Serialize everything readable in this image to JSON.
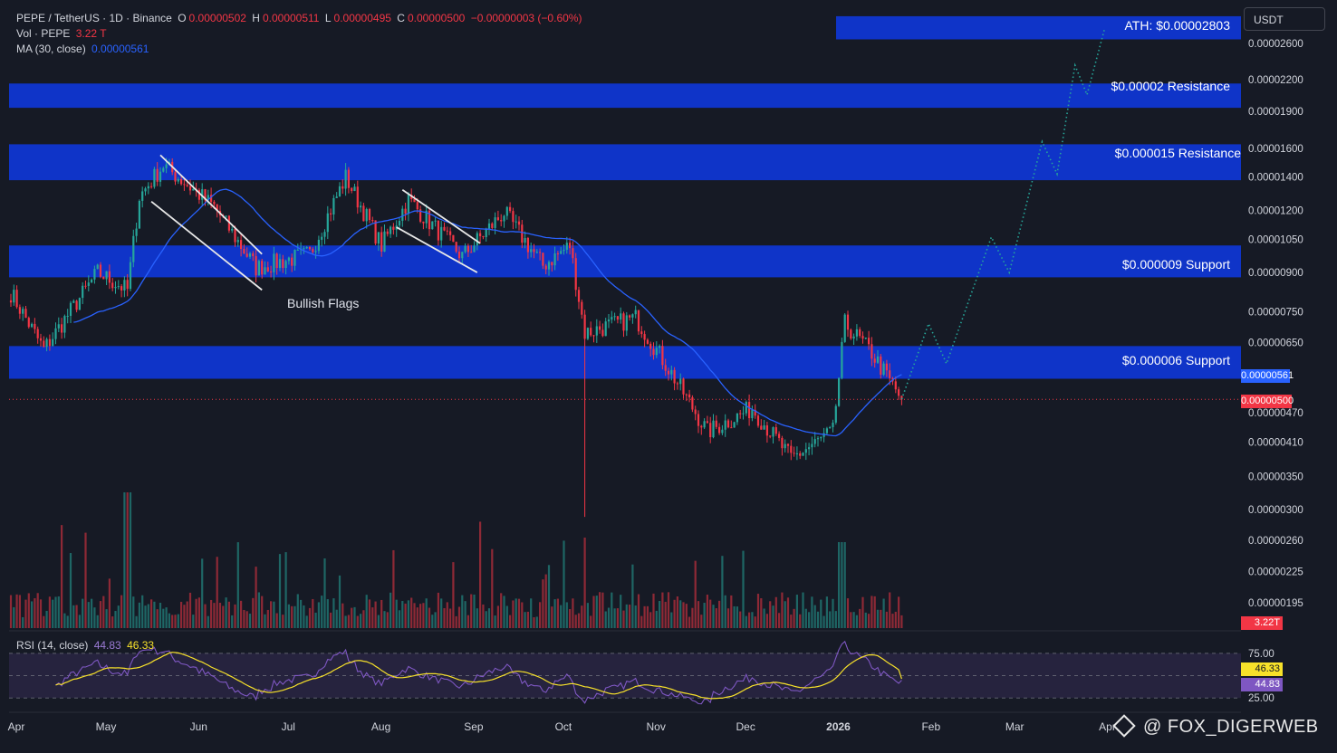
{
  "header": {
    "symbol": "PEPE / TetherUS · 1D · Binance",
    "o_label": "O",
    "o_value": "0.00000502",
    "h_label": "H",
    "h_value": "0.00000511",
    "l_label": "L",
    "l_value": "0.00000495",
    "c_label": "C",
    "c_value": "0.00000500",
    "change": "−0.00000003 (−0.60%)",
    "vol_label": "Vol · PEPE",
    "vol_value": "3.22 T",
    "ma_label": "MA (30, close)",
    "ma_value": "0.00000561",
    "currency_button": "USDT"
  },
  "zones": [
    {
      "label": "ATH: $0.00002803",
      "low": 2.65e-05,
      "high": 2.95e-05
    },
    {
      "label": "$0.00002 Resistance",
      "low": 1.93e-05,
      "high": 2.16e-05
    },
    {
      "label": "$0.000015 Resistance",
      "low": 1.38e-05,
      "high": 1.63e-05
    },
    {
      "label": "$0.000009 Support",
      "low": 8.8e-06,
      "high": 1.02e-05
    },
    {
      "label": "$0.000006 Support",
      "low": 5.5e-06,
      "high": 6.4e-06
    }
  ],
  "annotations": {
    "bullish_flags": "Bullish Flags"
  },
  "price_axis": {
    "ticks": [
      "0.00002600",
      "0.00002200",
      "0.00001900",
      "0.00001600",
      "0.00001400",
      "0.00001200",
      "0.00001050",
      "0.00000900",
      "0.00000750",
      "0.00000650",
      "0.00000470",
      "0.00000410",
      "0.00000350",
      "0.00000300",
      "0.00000260",
      "0.00000225",
      "0.00000195"
    ],
    "ma_badge": "0.00000561",
    "price_badge": "0.00000500",
    "vol_badge": "3.22T"
  },
  "time_axis": [
    "Apr",
    "May",
    "Jun",
    "Jul",
    "Aug",
    "Sep",
    "Oct",
    "Nov",
    "Dec",
    "2026",
    "Feb",
    "Mar",
    "Apr"
  ],
  "rsi": {
    "label": "RSI (14, close)",
    "value": "44.83",
    "ma_value": "46.33",
    "ticks": [
      "75.00",
      "25.00"
    ],
    "badge_ma": "46.33",
    "badge_rsi": "44.83"
  },
  "chart_data": {
    "type": "candlestick",
    "scale": "log",
    "interval": "1D",
    "x_start": "2025-04-01",
    "price_key_points": [
      {
        "date": "2025-04-01",
        "close": 8.2e-06
      },
      {
        "date": "2025-04-12",
        "close": 6.3e-06
      },
      {
        "date": "2025-04-30",
        "close": 9e-06
      },
      {
        "date": "2025-05-10",
        "close": 8.3e-06
      },
      {
        "date": "2025-05-14",
        "close": 1.28e-05
      },
      {
        "date": "2025-05-22",
        "close": 1.48e-05
      },
      {
        "date": "2025-06-08",
        "close": 1.22e-05
      },
      {
        "date": "2025-06-22",
        "close": 9.2e-06
      },
      {
        "date": "2025-07-10",
        "close": 9.8e-06
      },
      {
        "date": "2025-07-22",
        "close": 1.4e-05
      },
      {
        "date": "2025-08-03",
        "close": 1.02e-05
      },
      {
        "date": "2025-08-12",
        "close": 1.26e-05
      },
      {
        "date": "2025-08-30",
        "close": 9.7e-06
      },
      {
        "date": "2025-09-13",
        "close": 1.19e-05
      },
      {
        "date": "2025-09-26",
        "close": 9.3e-06
      },
      {
        "date": "2025-10-05",
        "close": 1.02e-05
      },
      {
        "date": "2025-10-10",
        "close": 6.8e-06
      },
      {
        "date": "2025-10-27",
        "close": 7.3e-06
      },
      {
        "date": "2025-11-06",
        "close": 5.9e-06
      },
      {
        "date": "2025-11-20",
        "close": 4.3e-06
      },
      {
        "date": "2025-12-05",
        "close": 4.8e-06
      },
      {
        "date": "2025-12-18",
        "close": 3.8e-06
      },
      {
        "date": "2026-01-01",
        "close": 4.3e-06
      },
      {
        "date": "2026-01-05",
        "close": 7.1e-06
      },
      {
        "date": "2026-01-14",
        "close": 6.2e-06
      },
      {
        "date": "2026-01-24",
        "close": 5e-06
      }
    ],
    "ma30_last": 5.61e-06,
    "last_close": 5e-06,
    "projection": [
      {
        "date": "2026-01-24",
        "price": 5e-06
      },
      {
        "date": "2026-02-02",
        "price": 7.1e-06
      },
      {
        "date": "2026-02-08",
        "price": 5.9e-06
      },
      {
        "date": "2026-02-23",
        "price": 1.06e-05
      },
      {
        "date": "2026-03-01",
        "price": 9e-06
      },
      {
        "date": "2026-03-12",
        "price": 1.65e-05
      },
      {
        "date": "2026-03-17",
        "price": 1.42e-05
      },
      {
        "date": "2026-03-23",
        "price": 2.35e-05
      },
      {
        "date": "2026-03-27",
        "price": 2.05e-05
      },
      {
        "date": "2026-04-02",
        "price": 2.8e-05
      }
    ],
    "volume_last": "3.22T",
    "rsi_last": 44.83,
    "rsi_ma_last": 46.33,
    "rsi_bands": [
      75,
      25
    ]
  },
  "watermark": "@ FOX_DIGERWEB",
  "colors": {
    "up": "#26a69a",
    "down": "#f23645",
    "ma": "#2962ff",
    "zone": "#0f36d6",
    "projection": "#26a69a",
    "rsi": "#7e57c2",
    "rsi_ma": "#f7e12a"
  }
}
